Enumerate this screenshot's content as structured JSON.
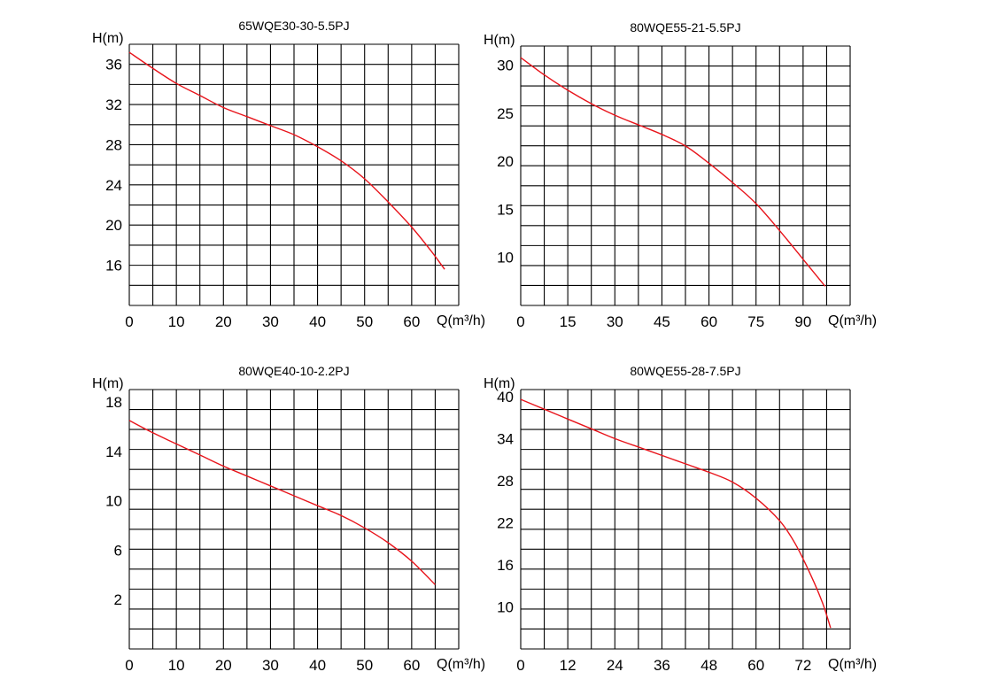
{
  "chart_data": [
    {
      "type": "line",
      "title": "65WQE30-30-5.5PJ",
      "xlabel": "Q(m³/h)",
      "ylabel": "H(m)",
      "xlim": [
        0,
        70
      ],
      "ylim": [
        12,
        38
      ],
      "x_ticks": [
        0,
        10,
        20,
        30,
        40,
        50,
        60
      ],
      "y_ticks": [
        16,
        20,
        24,
        28,
        32,
        36
      ],
      "grid": true,
      "series": [
        {
          "x": [
            0,
            5,
            10,
            15,
            20,
            25,
            30,
            35,
            40,
            45,
            50,
            55,
            60,
            64,
            67
          ],
          "y": [
            37.2,
            35.6,
            34.1,
            32.9,
            31.7,
            30.8,
            29.9,
            29.0,
            27.8,
            26.4,
            24.6,
            22.3,
            19.8,
            17.5,
            15.6
          ]
        }
      ]
    },
    {
      "type": "line",
      "title": "80WQE55-21-5.5PJ",
      "xlabel": "Q(m³/h)",
      "ylabel": "H(m)",
      "xlim": [
        0,
        105
      ],
      "ylim": [
        5,
        32
      ],
      "x_ticks": [
        0,
        15,
        30,
        45,
        60,
        75,
        90
      ],
      "y_ticks": [
        10,
        15,
        20,
        25,
        30
      ],
      "grid": true,
      "series": [
        {
          "x": [
            0,
            7.5,
            15,
            22.5,
            30,
            37.5,
            45,
            52.5,
            60,
            67.5,
            75,
            82.5,
            90,
            97
          ],
          "y": [
            30.8,
            29.0,
            27.4,
            26.0,
            24.8,
            23.8,
            22.8,
            21.6,
            19.8,
            17.8,
            15.6,
            12.8,
            9.8,
            7.0
          ]
        }
      ]
    },
    {
      "type": "line",
      "title": "80WQE40-10-2.2PJ",
      "xlabel": "Q(m³/h)",
      "ylabel": "H(m)",
      "xlim": [
        0,
        70
      ],
      "ylim": [
        -2,
        19
      ],
      "x_ticks": [
        0,
        10,
        20,
        30,
        40,
        50,
        60
      ],
      "y_ticks": [
        2,
        6,
        10,
        14,
        18
      ],
      "grid": true,
      "series": [
        {
          "x": [
            0,
            5,
            10,
            15,
            20,
            25,
            30,
            35,
            40,
            45,
            50,
            55,
            60,
            65
          ],
          "y": [
            16.5,
            15.5,
            14.6,
            13.7,
            12.8,
            12.0,
            11.2,
            10.4,
            9.6,
            8.8,
            7.8,
            6.6,
            5.1,
            3.2
          ]
        }
      ]
    },
    {
      "type": "line",
      "title": "80WQE55-28-7.5PJ",
      "xlabel": "Q(m³/h)",
      "ylabel": "H(m)",
      "xlim": [
        0,
        84
      ],
      "ylim": [
        4,
        41
      ],
      "x_ticks": [
        0,
        12,
        24,
        36,
        48,
        60,
        72
      ],
      "y_ticks": [
        10,
        16,
        22,
        28,
        34,
        40
      ],
      "grid": true,
      "series": [
        {
          "x": [
            0,
            6,
            12,
            18,
            24,
            30,
            36,
            42,
            48,
            54,
            60,
            66,
            70,
            74,
            77,
            79
          ],
          "y": [
            39.6,
            38.2,
            36.8,
            35.4,
            34.0,
            32.8,
            31.6,
            30.4,
            29.2,
            27.8,
            25.5,
            22.3,
            19.0,
            14.5,
            10.5,
            7.0
          ]
        }
      ]
    }
  ]
}
